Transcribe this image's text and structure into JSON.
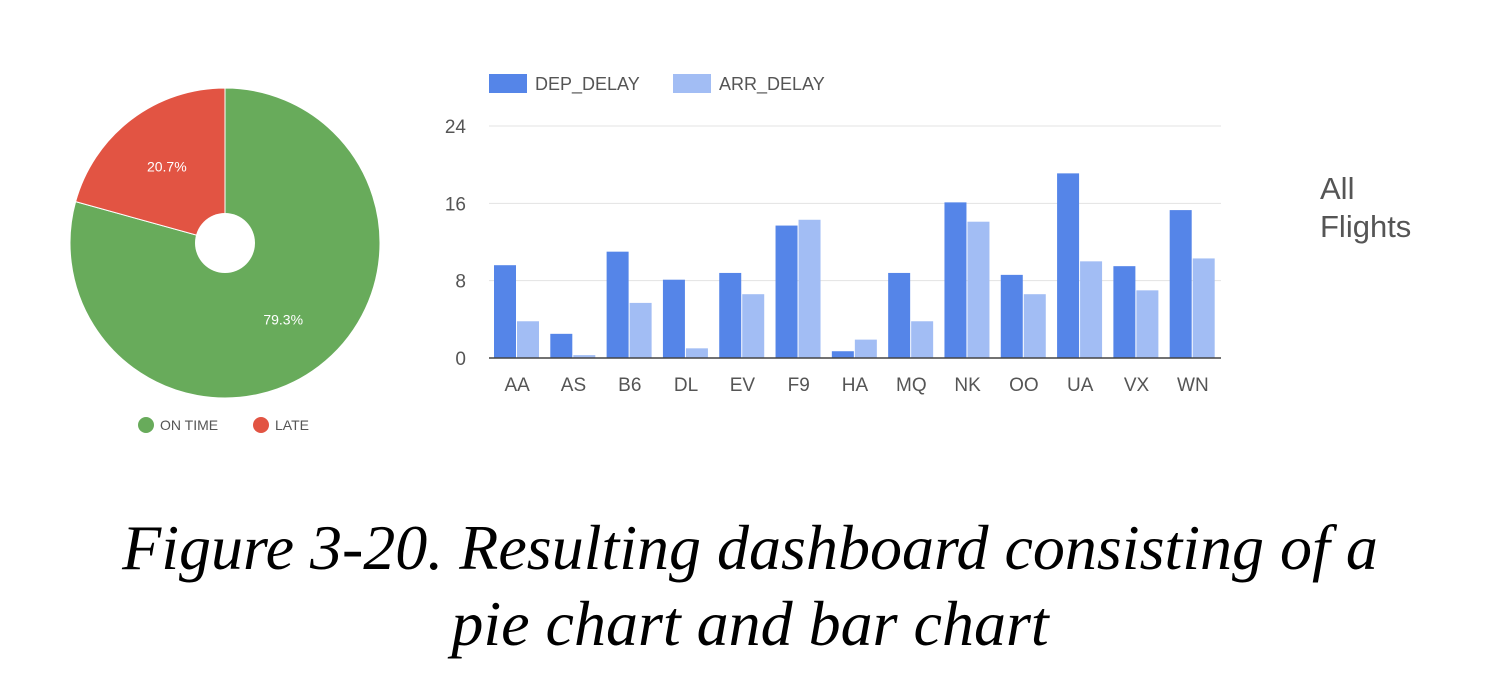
{
  "side_label": {
    "line1": "All",
    "line2": "Flights"
  },
  "caption": {
    "line1": "Figure 3-20. Resulting dashboard consisting of a",
    "line2": "pie chart and bar chart"
  },
  "colors": {
    "on_time": "#68ab5b",
    "late": "#e25443",
    "dep_delay": "#5585e8",
    "arr_delay": "#a2bdf4"
  },
  "chart_data": [
    {
      "type": "pie",
      "style": "donut",
      "slices": [
        {
          "name": "ON TIME",
          "value": 79.3,
          "label": "79.3%",
          "color": "#68ab5b"
        },
        {
          "name": "LATE",
          "value": 20.7,
          "label": "20.7%",
          "color": "#e25443"
        }
      ],
      "legend": [
        "ON TIME",
        "LATE"
      ],
      "legend_position": "bottom"
    },
    {
      "type": "bar",
      "categories": [
        "AA",
        "AS",
        "B6",
        "DL",
        "EV",
        "F9",
        "HA",
        "MQ",
        "NK",
        "OO",
        "UA",
        "VX",
        "WN"
      ],
      "series": [
        {
          "name": "DEP_DELAY",
          "color": "#5585e8",
          "values": [
            9.6,
            2.5,
            11.0,
            8.1,
            8.8,
            13.7,
            0.7,
            8.8,
            16.1,
            8.6,
            19.1,
            9.5,
            15.3
          ]
        },
        {
          "name": "ARR_DELAY",
          "color": "#a2bdf4",
          "values": [
            3.8,
            0.3,
            5.7,
            1.0,
            6.6,
            14.3,
            1.9,
            3.8,
            14.1,
            6.6,
            10.0,
            7.0,
            10.3
          ]
        }
      ],
      "ylim": [
        0,
        24
      ],
      "yticks": [
        0,
        8,
        16,
        24
      ],
      "grid": true,
      "legend_position": "top-left"
    }
  ]
}
